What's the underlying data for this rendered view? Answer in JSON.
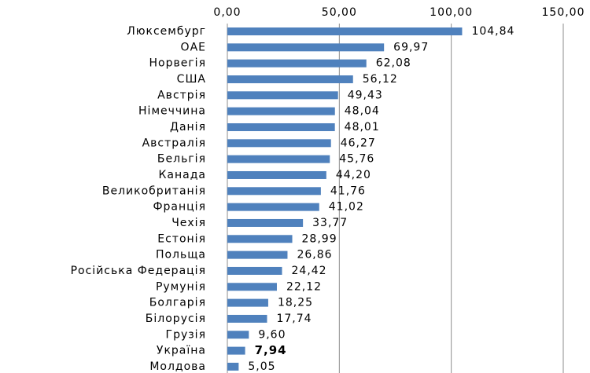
{
  "chart_data": {
    "type": "bar",
    "orientation": "horizontal",
    "categories": [
      "Люксембург",
      "ОАЕ",
      "Норвегія",
      "США",
      "Австрія",
      "Німеччина",
      "Данія",
      "Австралія",
      "Бельгія",
      "Канада",
      "Великобританія",
      "Франція",
      "Чехія",
      "Естонія",
      "Польща",
      "Російська Федерація",
      "Румунія",
      "Болгарія",
      "Білорусія",
      "Грузія",
      "Україна",
      "Молдова"
    ],
    "values": [
      104.84,
      69.97,
      62.08,
      56.12,
      49.43,
      48.04,
      48.01,
      46.27,
      45.76,
      44.2,
      41.76,
      41.02,
      33.77,
      28.99,
      26.86,
      24.42,
      22.12,
      18.25,
      17.74,
      9.6,
      7.94,
      5.05
    ],
    "value_labels": [
      "104,84",
      "69,97",
      "62,08",
      "56,12",
      "49,43",
      "48,04",
      "48,01",
      "46,27",
      "45,76",
      "44,20",
      "41,76",
      "41,02",
      "33,77",
      "28,99",
      "26,86",
      "24,42",
      "22,12",
      "18,25",
      "17,74",
      "9,60",
      "7,94",
      "5,05"
    ],
    "color": "#4f81bd",
    "highlight": "Україна",
    "xlim": [
      0,
      150
    ],
    "xticks": [
      {
        "value": 0,
        "label": "0,00"
      },
      {
        "value": 50,
        "label": "50,00"
      },
      {
        "value": 100,
        "label": "100,00"
      },
      {
        "value": 150,
        "label": "150,00"
      }
    ],
    "grid": true
  }
}
